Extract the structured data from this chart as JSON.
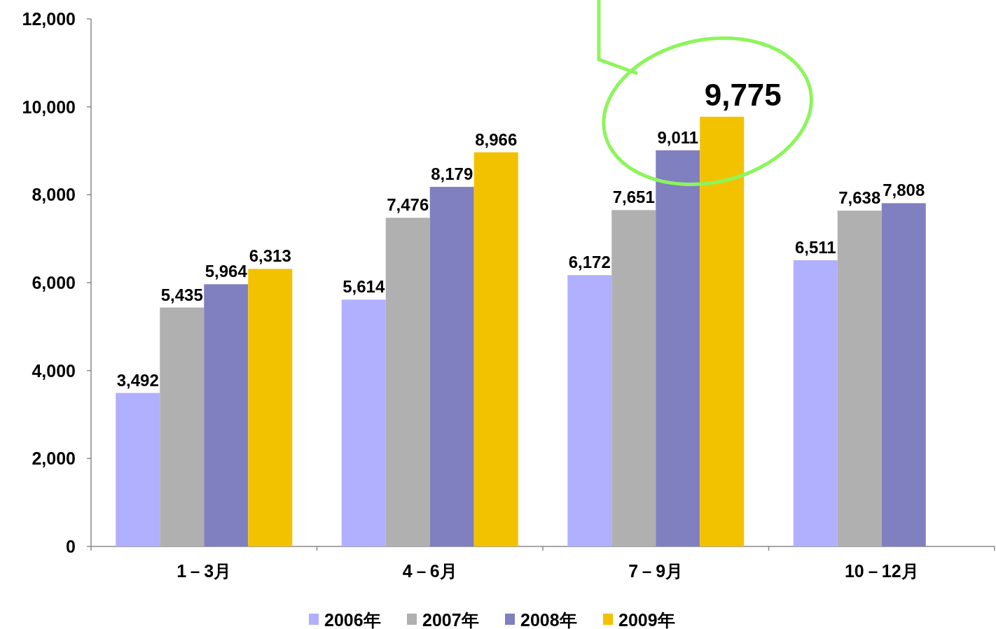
{
  "chart_data": {
    "type": "bar",
    "categories": [
      "1－3月",
      "4－6月",
      "7－9月",
      "10－12月"
    ],
    "series": [
      {
        "name": "2006年",
        "color": "#b0b0ff",
        "values": [
          3492,
          5614,
          6172,
          6511
        ],
        "value_labels": [
          "3,492",
          "5,614",
          "6,172",
          "6,511"
        ]
      },
      {
        "name": "2007年",
        "color": "#b0b0b0",
        "values": [
          5435,
          7476,
          7651,
          7638
        ],
        "value_labels": [
          "5,435",
          "7,476",
          "7,651",
          "7,638"
        ]
      },
      {
        "name": "2008年",
        "color": "#8080c0",
        "values": [
          5964,
          8179,
          9011,
          7808
        ],
        "value_labels": [
          "5,964",
          "8,179",
          "9,011",
          "7,808"
        ]
      },
      {
        "name": "2009年",
        "color": "#f2c200",
        "values": [
          6313,
          8966,
          9775,
          null
        ],
        "value_labels": [
          "6,313",
          "8,966",
          "9,775",
          null
        ]
      }
    ],
    "ylim": [
      0,
      12000
    ],
    "yticks": [
      {
        "value": 0,
        "label": "0"
      },
      {
        "value": 2000,
        "label": "2,000"
      },
      {
        "value": 4000,
        "label": "4,000"
      },
      {
        "value": 6000,
        "label": "6,000"
      },
      {
        "value": 8000,
        "label": "8,000"
      },
      {
        "value": 10000,
        "label": "10,000"
      },
      {
        "value": 12000,
        "label": "12,000"
      }
    ],
    "grid": false,
    "legend": "bottom"
  }
}
